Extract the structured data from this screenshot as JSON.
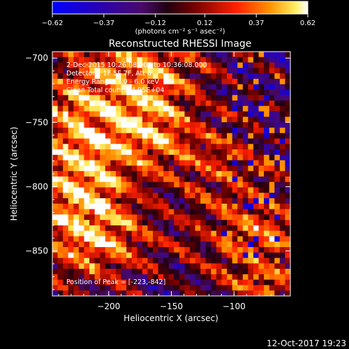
{
  "chart_data": {
    "type": "heatmap",
    "title": "Reconstructed RHESSI Image",
    "xlabel": "Heliocentric X (arcsec)",
    "ylabel": "Heliocentric Y (arcsec)",
    "xlim": [
      -245,
      -55
    ],
    "ylim": [
      -885,
      -695
    ],
    "x_ticks": [
      -200,
      -150,
      -100
    ],
    "x_tick_labels": [
      "−200",
      "−150",
      "−100"
    ],
    "y_ticks": [
      -700,
      -750,
      -800,
      -850
    ],
    "y_tick_labels": [
      "−700",
      "−750",
      "−800",
      "−850"
    ],
    "colorbar": {
      "range": [
        -0.62,
        0.62
      ],
      "ticks": [
        -0.62,
        -0.37,
        -0.12,
        0.12,
        0.37,
        0.62
      ],
      "tick_labels": [
        "−0.62",
        "−0.37",
        "−0.12",
        "0.12",
        "0.37",
        "0.62"
      ],
      "units_label": "(photons cm⁻² s⁻¹ asec⁻²)",
      "colormap": "blue-purple-red-yellow-white"
    },
    "grid": false,
    "grid_size": [
      45,
      45
    ],
    "peak": {
      "x": -223,
      "y": -842
    },
    "structure": "diagonal bright bands running from upper-left to lower-right, strongest near (-180,-710), (-225,-790), (-215,-840) and (-80,-835)"
  },
  "annotations": {
    "time_range": "2-Dec-2015 10:26:08.000 to 10:36:08.000",
    "detectors": "Detectors: 1F 5F 7F, Att 0",
    "energy": "Energy Range: 3.0 - 6.0 keV",
    "method": "Clean    Total counts: 4.95E+04",
    "peak": "Position of Peak = [-223,-842]"
  },
  "footer": {
    "timestamp": "12-Oct-2017 19:23"
  },
  "colors": {
    "background": "#000000",
    "text": "#ffffff"
  }
}
